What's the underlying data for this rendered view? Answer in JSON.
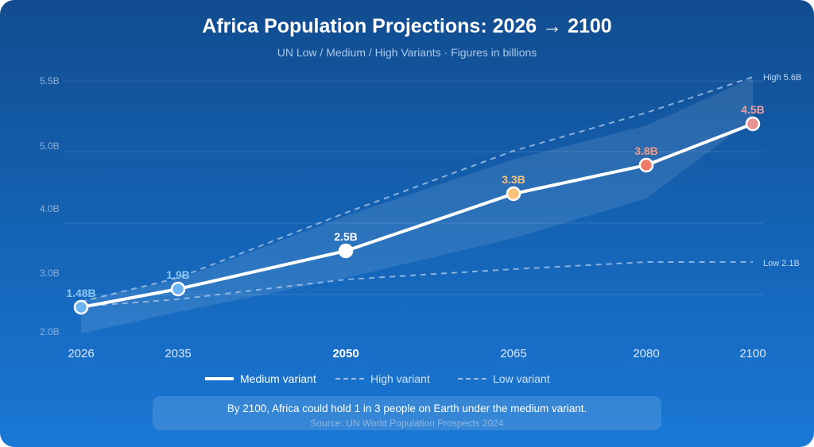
{
  "title": "Africa Population Projections: 2026 → 2100",
  "subtitle": "UN Low / Medium / High Variants · Figures in billions",
  "legend": {
    "medium": "Medium variant",
    "high": "High variant",
    "low": "Low variant"
  },
  "note": {
    "text": "By 2100, Africa could hold 1 in 3 people on Earth under the medium variant.",
    "source": "Source: UN World Population Prospects 2024"
  },
  "colors": {
    "medium_line": "#ffffff",
    "point_2026": "#6cb4f2",
    "point_2035": "#6cb4f2",
    "point_2050": "#ffffff",
    "point_2065": "#f8c27a",
    "point_2080": "#f07a6a",
    "point_2100": "#e89292",
    "band": "#ffffff",
    "dashes": "#9fc0e4"
  },
  "chart_data": {
    "type": "line",
    "title": "Africa Population Projections: 2026 → 2100",
    "x": [
      2026,
      2035,
      2050,
      2065,
      2080,
      2100
    ],
    "x_tick_labels": [
      "2026",
      "2035",
      "2050",
      "2065",
      "2080",
      "2100"
    ],
    "highlight_x": "2050",
    "y_ticks": [
      {
        "value": 2.0,
        "label": "2.0B"
      },
      {
        "value": 3.0,
        "label": "3.0B"
      },
      {
        "value": 4.0,
        "label": "4.0B"
      },
      {
        "value": 5.0,
        "label": "5.0B"
      },
      {
        "value": 5.5,
        "label": "5.5B"
      }
    ],
    "series": [
      {
        "name": "Medium variant",
        "style": "solid",
        "values": [
          1.48,
          1.9,
          2.5,
          3.3,
          3.8,
          4.5
        ],
        "data_labels": [
          "1.48B",
          "1.9B",
          "2.5B",
          "3.3B",
          "3.8B",
          "4.5B"
        ]
      },
      {
        "name": "High variant",
        "style": "dashed",
        "values": [
          1.5,
          2.1,
          3.3,
          4.4,
          5.0,
          5.6
        ],
        "end_label": "High 5.6B"
      },
      {
        "name": "Low variant",
        "style": "dashed",
        "values": [
          1.47,
          1.66,
          1.86,
          1.98,
          2.1,
          2.1
        ],
        "end_label": "Low 2.1B"
      }
    ],
    "grid": true,
    "legend_position": "bottom"
  }
}
